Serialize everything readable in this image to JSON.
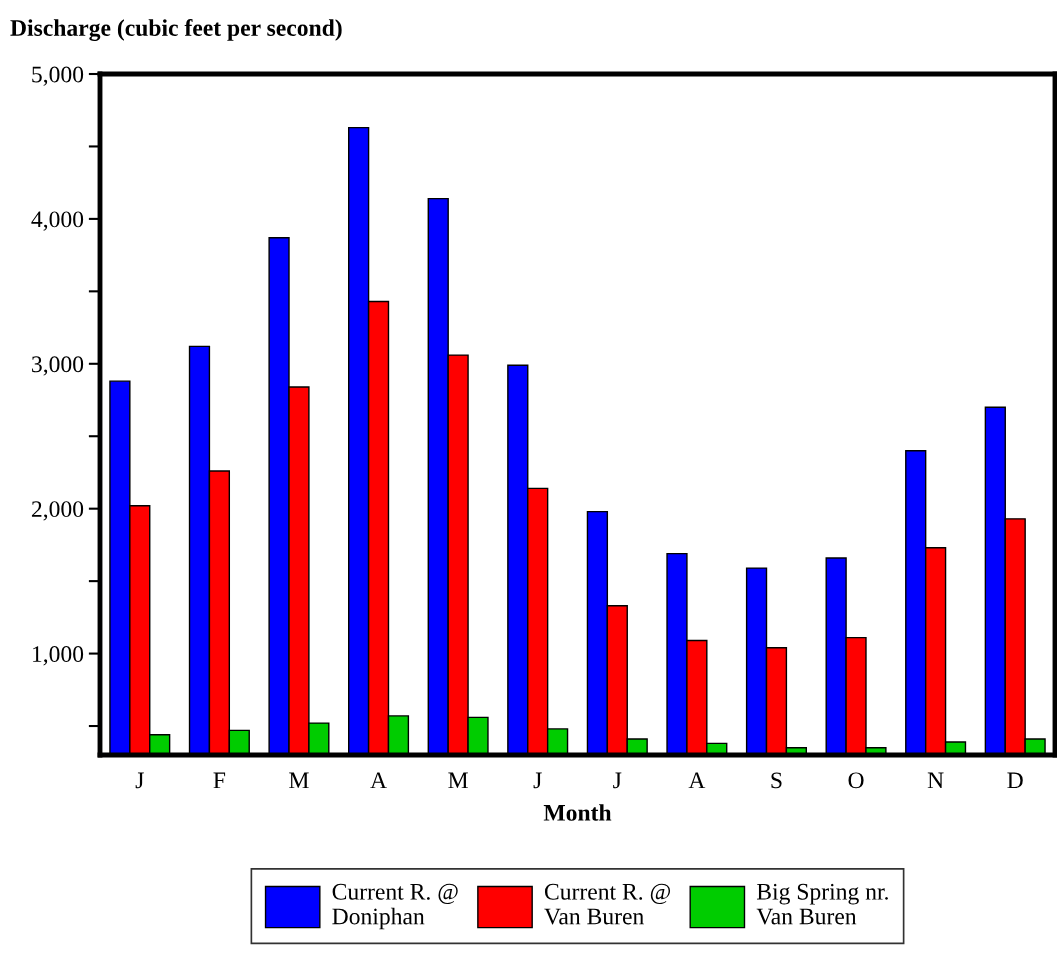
{
  "chart_data": {
    "type": "bar",
    "title": "Discharge (cubic feet per second)",
    "xlabel": "Month",
    "categories": [
      "J",
      "F",
      "M",
      "A",
      "M",
      "J",
      "J",
      "A",
      "S",
      "O",
      "N",
      "D"
    ],
    "series": [
      {
        "name": "Current R. @\nDoniphan",
        "color": "#0000ff",
        "values": [
          2880,
          3120,
          3870,
          4630,
          4140,
          2990,
          1980,
          1690,
          1590,
          1660,
          2400,
          2700
        ]
      },
      {
        "name": "Current R. @\nVan Buren",
        "color": "#ff0000",
        "values": [
          2020,
          2260,
          2840,
          3430,
          3060,
          2140,
          1330,
          1090,
          1040,
          1110,
          1730,
          1930
        ]
      },
      {
        "name": "Big Spring nr.\nVan Buren",
        "color": "#00cc00",
        "values": [
          440,
          470,
          520,
          570,
          560,
          480,
          410,
          380,
          350,
          350,
          390,
          410
        ]
      }
    ],
    "ylim": [
      300,
      5000
    ],
    "yticks": [
      {
        "value": 500,
        "label": null
      },
      {
        "value": 1000,
        "label": "1,000"
      },
      {
        "value": 1500,
        "label": null
      },
      {
        "value": 2000,
        "label": "2,000"
      },
      {
        "value": 2500,
        "label": null
      },
      {
        "value": 3000,
        "label": "3,000"
      },
      {
        "value": 3500,
        "label": null
      },
      {
        "value": 4000,
        "label": "4,000"
      },
      {
        "value": 4500,
        "label": null
      },
      {
        "value": 5000,
        "label": "5,000"
      }
    ],
    "grid": false,
    "legend": "bottom"
  }
}
